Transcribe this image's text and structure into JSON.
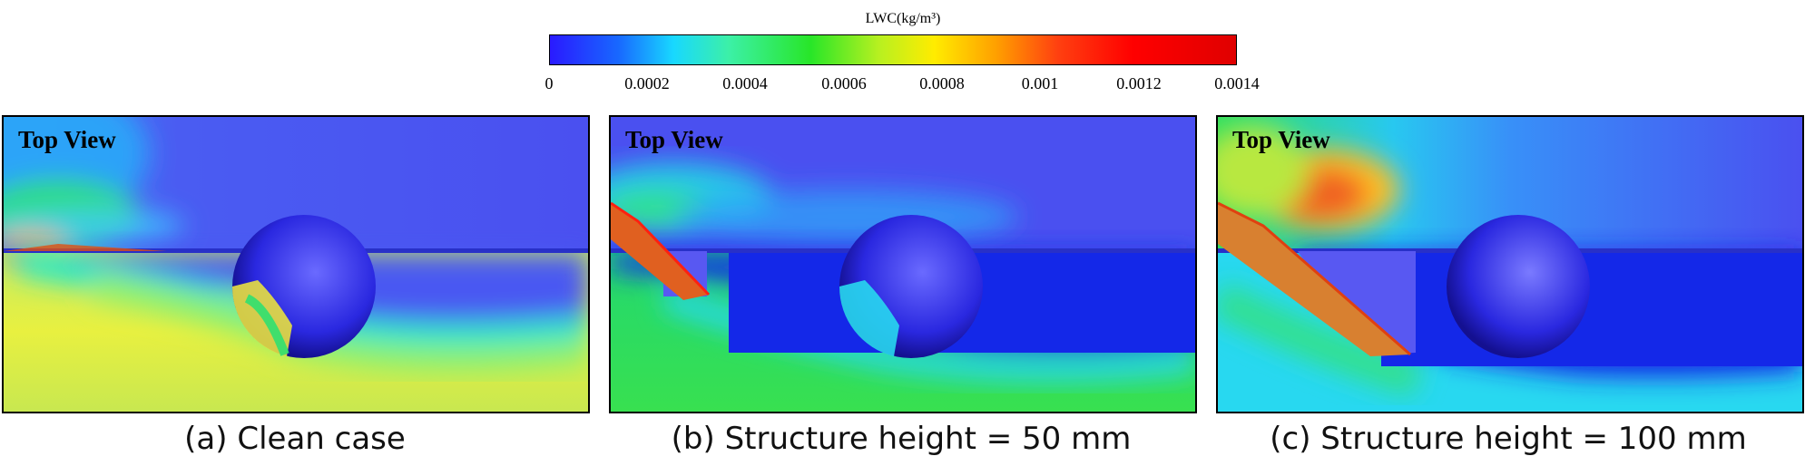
{
  "colorbar": {
    "title": "LWC(kg/m³)",
    "ticks": [
      "0",
      "0.0002",
      "0.0004",
      "0.0006",
      "0.0008",
      "0.001",
      "0.0012",
      "0.0014"
    ]
  },
  "panels": [
    {
      "label": "Top View",
      "caption": "(a) Clean case"
    },
    {
      "label": "Top View",
      "caption": "(b) Structure height = 50 mm"
    },
    {
      "label": "Top View",
      "caption": "(c) Structure height = 100 mm"
    }
  ]
}
